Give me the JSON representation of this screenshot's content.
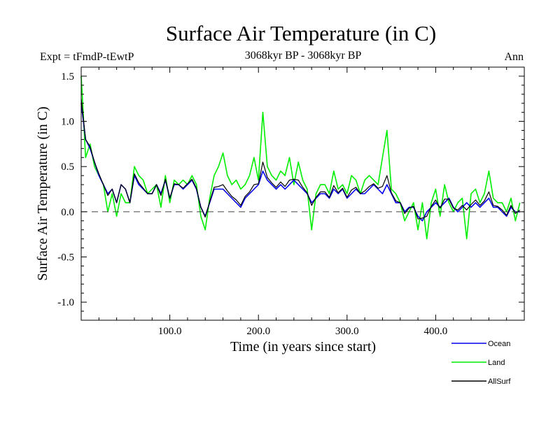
{
  "chart_data": {
    "type": "line",
    "title": "Surface Air Temperature (in C)",
    "subtitle": "3068kyr BP - 3068kyr BP",
    "left_annotation": "Expt = tFmdP-tEwtP",
    "right_annotation": "Ann",
    "xlabel": "Time (in years since start)",
    "ylabel": "Surface Air Temperature (in C)",
    "xlim": [
      0,
      500
    ],
    "ylim": [
      -1.2,
      1.6
    ],
    "x_ticks": [
      100,
      200,
      300,
      400
    ],
    "x_tick_labels": [
      "100.0",
      "200.0",
      "300.0",
      "400.0"
    ],
    "y_ticks": [
      -1.0,
      -0.5,
      0.0,
      0.5,
      1.0,
      1.5
    ],
    "y_tick_labels": [
      "-1.0",
      "-0.5",
      "0.0",
      "0.5",
      "1.0",
      "1.5"
    ],
    "zero_line": {
      "y": 0,
      "style": "dashed"
    },
    "legend_position": "bottom-right, below plot",
    "series": [
      {
        "name": "Land",
        "color": "#00ee00",
        "x_start": 0,
        "x_step": 5,
        "values": [
          1.5,
          0.6,
          0.75,
          0.5,
          0.4,
          0.3,
          0.0,
          0.2,
          -0.05,
          0.2,
          0.1,
          0.1,
          0.5,
          0.4,
          0.35,
          0.2,
          0.25,
          0.3,
          0.05,
          0.4,
          0.1,
          0.35,
          0.3,
          0.35,
          0.3,
          0.4,
          0.3,
          -0.05,
          -0.2,
          0.15,
          0.4,
          0.5,
          0.65,
          0.4,
          0.3,
          0.35,
          0.25,
          0.3,
          0.4,
          0.6,
          0.35,
          1.1,
          0.5,
          0.4,
          0.35,
          0.45,
          0.4,
          0.6,
          0.3,
          0.55,
          0.35,
          0.25,
          -0.2,
          0.2,
          0.3,
          0.3,
          0.2,
          0.45,
          0.25,
          0.3,
          0.2,
          0.4,
          0.35,
          0.2,
          0.35,
          0.4,
          0.35,
          0.3,
          0.6,
          0.9,
          0.25,
          0.2,
          0.1,
          -0.1,
          0.0,
          0.1,
          -0.2,
          0.1,
          -0.3,
          0.1,
          0.25,
          -0.05,
          0.3,
          0.1,
          0.0,
          0.1,
          0.15,
          -0.3,
          0.2,
          0.25,
          0.1,
          0.2,
          0.45,
          0.15,
          0.1,
          0.1,
          0.0,
          0.15,
          -0.1,
          0.1
        ]
      },
      {
        "name": "Ocean",
        "color": "#0000ee",
        "x_start": 0,
        "x_step": 5,
        "values": [
          1.2,
          0.8,
          0.7,
          0.55,
          0.4,
          0.3,
          0.2,
          0.25,
          0.1,
          0.3,
          0.25,
          0.1,
          0.4,
          0.3,
          0.25,
          0.2,
          0.2,
          0.3,
          0.2,
          0.35,
          0.15,
          0.3,
          0.3,
          0.25,
          0.3,
          0.35,
          0.25,
          0.05,
          -0.05,
          0.1,
          0.25,
          0.25,
          0.25,
          0.2,
          0.15,
          0.1,
          0.05,
          0.15,
          0.2,
          0.25,
          0.3,
          0.45,
          0.35,
          0.3,
          0.25,
          0.3,
          0.25,
          0.3,
          0.35,
          0.3,
          0.25,
          0.2,
          0.1,
          0.15,
          0.2,
          0.2,
          0.15,
          0.25,
          0.2,
          0.25,
          0.15,
          0.2,
          0.25,
          0.2,
          0.2,
          0.25,
          0.3,
          0.25,
          0.2,
          0.3,
          0.2,
          0.1,
          0.1,
          0.0,
          0.05,
          0.05,
          -0.05,
          -0.1,
          0.0,
          0.05,
          0.1,
          0.05,
          0.1,
          0.15,
          0.05,
          0.0,
          0.05,
          0.1,
          0.05,
          0.1,
          0.05,
          0.1,
          0.15,
          0.05,
          0.05,
          0.0,
          -0.05,
          0.05,
          0.0,
          0.0
        ]
      },
      {
        "name": "AllSurf",
        "color": "#000000",
        "x_start": 0,
        "x_step": 5,
        "values": [
          1.25,
          0.8,
          0.72,
          0.55,
          0.42,
          0.3,
          0.18,
          0.25,
          0.1,
          0.3,
          0.25,
          0.1,
          0.42,
          0.32,
          0.26,
          0.2,
          0.2,
          0.3,
          0.18,
          0.36,
          0.15,
          0.31,
          0.3,
          0.26,
          0.31,
          0.36,
          0.26,
          0.05,
          -0.06,
          0.11,
          0.27,
          0.28,
          0.3,
          0.23,
          0.17,
          0.13,
          0.07,
          0.17,
          0.22,
          0.3,
          0.31,
          0.55,
          0.38,
          0.32,
          0.27,
          0.33,
          0.28,
          0.35,
          0.36,
          0.35,
          0.27,
          0.21,
          0.07,
          0.16,
          0.22,
          0.22,
          0.16,
          0.29,
          0.21,
          0.26,
          0.16,
          0.24,
          0.27,
          0.2,
          0.23,
          0.28,
          0.31,
          0.26,
          0.28,
          0.4,
          0.21,
          0.12,
          0.1,
          -0.02,
          0.04,
          0.06,
          -0.08,
          -0.07,
          -0.05,
          0.06,
          0.13,
          0.04,
          0.14,
          0.14,
          0.04,
          0.02,
          0.07,
          0.02,
          0.08,
          0.13,
          0.07,
          0.12,
          0.22,
          0.07,
          0.06,
          0.02,
          -0.04,
          0.07,
          -0.02,
          0.02
        ]
      }
    ],
    "legend": [
      {
        "name": "Ocean",
        "color": "#0000ee"
      },
      {
        "name": "Land",
        "color": "#00ee00"
      },
      {
        "name": "AllSurf",
        "color": "#000000"
      }
    ]
  }
}
